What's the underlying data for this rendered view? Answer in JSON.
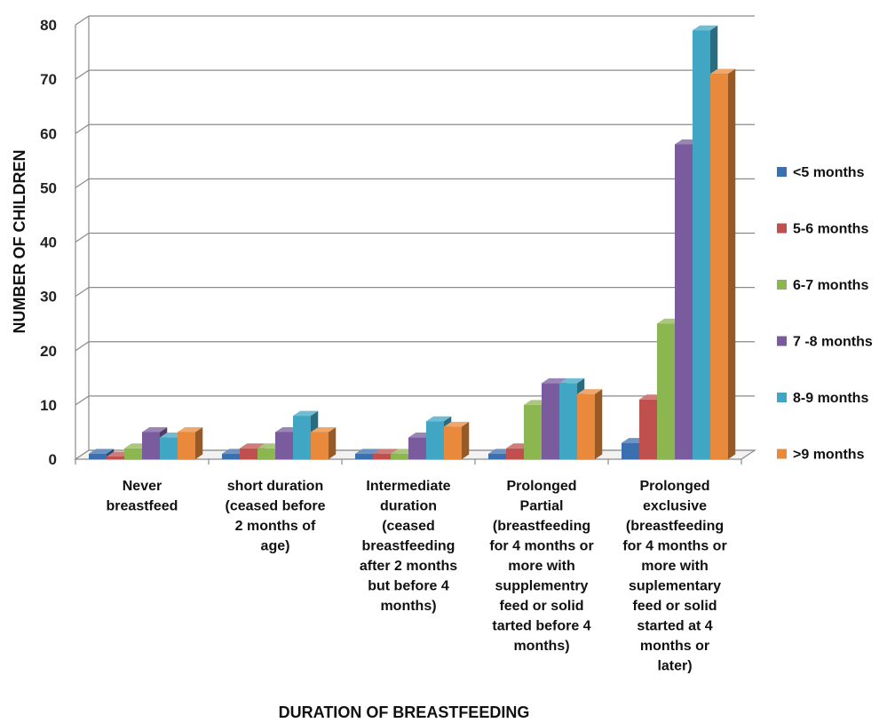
{
  "chart_data": {
    "type": "bar",
    "title": "",
    "xlabel": "DURATION OF BREASTFEEDING",
    "ylabel": "NUMBER OF CHILDREN",
    "ylim": [
      0,
      80
    ],
    "yticks": [
      "0",
      "10",
      "20",
      "30",
      "40",
      "50",
      "60",
      "70",
      "80"
    ],
    "grid": true,
    "legend_position": "right",
    "categories": [
      [
        "Never",
        "breastfeed"
      ],
      [
        "short duration",
        "(ceased before",
        "2 months of",
        "age)"
      ],
      [
        "Intermediate",
        "duration",
        "(ceased",
        "breastfeeding",
        "after 2 months",
        "but before 4",
        "months)"
      ],
      [
        "Prolonged",
        "Partial",
        "(breastfeeding",
        "for 4 months or",
        "more with",
        "supplementry",
        "feed or solid",
        "tarted before 4",
        "months)"
      ],
      [
        "Prolonged",
        "exclusive",
        "(breastfeeding",
        "for 4 months or",
        "more with",
        "suplementary",
        "feed or solid",
        "started at 4",
        "months or",
        "later)"
      ]
    ],
    "series": [
      {
        "name": "<5 months",
        "color": "#3a6fb0",
        "values": [
          1,
          1,
          1,
          1,
          3
        ]
      },
      {
        "name": "5-6 months",
        "color": "#c0504d",
        "values": [
          0.5,
          2,
          1,
          2,
          11
        ]
      },
      {
        "name": "6-7 months",
        "color": "#8cb650",
        "values": [
          2,
          2,
          1,
          10,
          25
        ]
      },
      {
        "name": "7 -8 months",
        "color": "#7a5c9e",
        "values": [
          5,
          5,
          4,
          14,
          58
        ]
      },
      {
        "name": "8-9 months",
        "color": "#40a6c4",
        "values": [
          4,
          8,
          7,
          14,
          79
        ]
      },
      {
        "name": ">9 months",
        "color": "#e8893b",
        "values": [
          5,
          5,
          6,
          12,
          71
        ]
      }
    ]
  }
}
